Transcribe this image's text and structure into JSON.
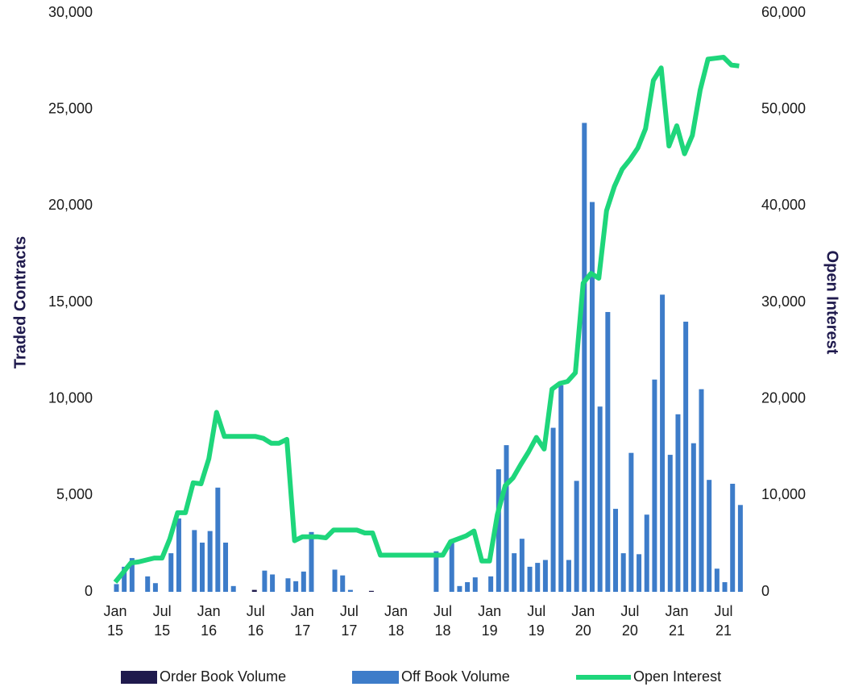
{
  "chart_data": {
    "type": "bar_line",
    "ylabel": "Traded Contracts",
    "y2label": "Open Interest",
    "categories": [
      "Jan 15",
      null,
      null,
      null,
      null,
      null,
      "Jul 15",
      null,
      null,
      null,
      null,
      null,
      "Jan 16",
      null,
      null,
      null,
      null,
      null,
      "Jul 16",
      null,
      null,
      null,
      null,
      null,
      "Jan 17",
      null,
      null,
      null,
      null,
      null,
      "Jul 17",
      null,
      null,
      null,
      null,
      null,
      "Jan 18",
      null,
      null,
      null,
      null,
      null,
      "Jul 18",
      null,
      null,
      null,
      null,
      null,
      "Jan 19",
      null,
      null,
      null,
      null,
      null,
      "Jul 19",
      null,
      null,
      null,
      null,
      null,
      "Jan 20",
      null,
      null,
      null,
      null,
      null,
      "Jul 20",
      null,
      null,
      null,
      null,
      null,
      "Jan 21",
      null,
      null,
      null,
      null,
      null,
      "Jul 21",
      null,
      null
    ],
    "series": [
      {
        "name": "Order Book Volume",
        "type": "bar",
        "color": "#1f1a4d",
        "values": [
          0,
          0,
          0,
          0,
          0,
          0,
          0,
          0,
          0,
          0,
          0,
          0,
          0,
          0,
          0,
          0,
          0,
          0,
          100,
          0,
          0,
          0,
          0,
          0,
          0,
          0,
          0,
          0,
          0,
          0,
          0,
          0,
          0,
          50,
          0,
          0,
          0,
          0,
          0,
          0,
          0,
          0,
          0,
          0,
          0,
          0,
          0,
          0,
          0,
          0,
          0,
          0,
          0,
          0,
          0,
          0,
          0,
          0,
          0,
          0,
          0,
          0,
          0,
          0,
          0,
          0,
          0,
          0,
          0,
          0,
          0,
          0,
          0,
          0,
          0,
          0,
          0,
          0,
          0,
          0,
          0
        ]
      },
      {
        "name": "Off Book Volume",
        "type": "bar",
        "color": "#3d7cc9",
        "values": [
          400,
          1300,
          1750,
          0,
          800,
          450,
          0,
          2000,
          3800,
          0,
          3200,
          2550,
          3150,
          5400,
          2550,
          300,
          0,
          0,
          0,
          1100,
          900,
          0,
          700,
          550,
          1050,
          3100,
          0,
          0,
          1150,
          850,
          100,
          0,
          0,
          0,
          0,
          0,
          0,
          0,
          0,
          0,
          0,
          2100,
          0,
          2600,
          300,
          500,
          750,
          0,
          800,
          6350,
          7600,
          2000,
          2750,
          1300,
          1500,
          1650,
          8500,
          10700,
          1650,
          5750,
          24300,
          20200,
          9600,
          14500,
          4300,
          2000,
          7200,
          1950,
          4000,
          11000,
          15400,
          7100,
          9200,
          14000,
          7700,
          10500,
          5800,
          1200,
          500,
          5600,
          4500
        ]
      },
      {
        "name": "Open Interest",
        "type": "line",
        "axis": "y2",
        "color": "#1ed67b",
        "values": [
          1000,
          2000,
          3000,
          3100,
          3300,
          3500,
          3500,
          5500,
          8200,
          8200,
          11300,
          11200,
          13800,
          18600,
          16100,
          16100,
          16100,
          16100,
          16100,
          15900,
          15400,
          15400,
          15800,
          5300,
          5700,
          5700,
          5700,
          5600,
          6400,
          6400,
          6400,
          6400,
          6100,
          6100,
          3800,
          3800,
          3800,
          3800,
          3800,
          3800,
          3800,
          3800,
          3800,
          5200,
          5500,
          5800,
          6300,
          3200,
          3200,
          8000,
          11000,
          11800,
          13200,
          14500,
          16000,
          14800,
          21000,
          21600,
          21800,
          22700,
          32000,
          33000,
          32500,
          39500,
          42000,
          43800,
          44800,
          46000,
          48000,
          53000,
          54300,
          46200,
          48300,
          45400,
          47300,
          52000,
          55200,
          55300,
          55400,
          54600,
          54500
        ]
      }
    ],
    "ylim": [
      0,
      30000
    ],
    "yticks": [
      0,
      {
        "value": 5000,
        "label": "5,000"
      },
      {
        "value": 10000,
        "label": "10,000"
      },
      {
        "value": 15000,
        "label": "15,000"
      },
      {
        "value": 20000,
        "label": "20,000"
      },
      {
        "value": 25000,
        "label": "25,000"
      },
      {
        "value": 30000,
        "label": "30,000"
      }
    ],
    "y2lim": [
      0,
      60000
    ],
    "y2ticks": [
      0,
      {
        "value": 10000,
        "label": "10,000"
      },
      {
        "value": 20000,
        "label": "20,000"
      },
      {
        "value": 30000,
        "label": "30,000"
      },
      {
        "value": 40000,
        "label": "40,000"
      },
      {
        "value": 50000,
        "label": "50,000"
      },
      {
        "value": 60000,
        "label": "60,000"
      }
    ],
    "legend": "bottom",
    "grid": false
  }
}
